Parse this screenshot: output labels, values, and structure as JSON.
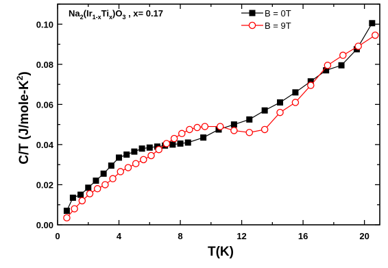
{
  "chart_data": {
    "type": "scatter",
    "title": "",
    "xlabel": "T(K)",
    "ylabel_parts": {
      "main": "C/T (J/mole-K",
      "sup": "2",
      "end": ")"
    },
    "xlim": [
      0,
      21
    ],
    "ylim": [
      0,
      0.11
    ],
    "xticks": [
      0,
      4,
      8,
      12,
      16,
      20
    ],
    "yticks": [
      0.0,
      0.02,
      0.04,
      0.06,
      0.08,
      0.1
    ],
    "ytick_labels": [
      "0.00",
      "0.02",
      "0.04",
      "0.06",
      "0.08",
      "0.10"
    ],
    "grid": false,
    "legend_position": "top-right",
    "annotation": {
      "parts": [
        {
          "text": "Na",
          "style": "normal"
        },
        {
          "text": "2",
          "style": "sub"
        },
        {
          "text": "(Ir",
          "style": "normal"
        },
        {
          "text": "1-x",
          "style": "sub"
        },
        {
          "text": "Ti",
          "style": "normal"
        },
        {
          "text": "x",
          "style": "sub"
        },
        {
          "text": ")O",
          "style": "normal"
        },
        {
          "text": "3",
          "style": "sub"
        },
        {
          "text": " , x= 0.17",
          "style": "normal"
        }
      ]
    },
    "series": [
      {
        "name": "B = 0T",
        "color": "#000000",
        "marker": "filled-square",
        "points": [
          [
            0.6,
            0.007
          ],
          [
            1.0,
            0.0135
          ],
          [
            1.5,
            0.015
          ],
          [
            2.0,
            0.0185
          ],
          [
            2.5,
            0.022
          ],
          [
            3.0,
            0.0255
          ],
          [
            3.5,
            0.0295
          ],
          [
            4.0,
            0.0335
          ],
          [
            4.5,
            0.035
          ],
          [
            5.0,
            0.0365
          ],
          [
            5.5,
            0.038
          ],
          [
            6.0,
            0.0385
          ],
          [
            6.5,
            0.039
          ],
          [
            7.0,
            0.0395
          ],
          [
            7.5,
            0.04
          ],
          [
            8.0,
            0.0405
          ],
          [
            8.5,
            0.041
          ],
          [
            9.5,
            0.0435
          ],
          [
            10.5,
            0.0475
          ],
          [
            11.5,
            0.05
          ],
          [
            12.5,
            0.0525
          ],
          [
            13.5,
            0.057
          ],
          [
            14.5,
            0.061
          ],
          [
            15.5,
            0.066
          ],
          [
            16.5,
            0.0715
          ],
          [
            17.5,
            0.077
          ],
          [
            18.5,
            0.0795
          ],
          [
            19.5,
            0.0875
          ],
          [
            20.5,
            0.1005
          ]
        ]
      },
      {
        "name": "B = 9T",
        "color": "#ff0000",
        "marker": "open-circle",
        "points": [
          [
            0.6,
            0.0035
          ],
          [
            1.1,
            0.008
          ],
          [
            1.6,
            0.012
          ],
          [
            2.1,
            0.0155
          ],
          [
            2.6,
            0.018
          ],
          [
            3.1,
            0.02
          ],
          [
            3.6,
            0.023
          ],
          [
            4.1,
            0.0265
          ],
          [
            4.6,
            0.0285
          ],
          [
            5.1,
            0.0305
          ],
          [
            5.6,
            0.0325
          ],
          [
            6.1,
            0.0345
          ],
          [
            6.6,
            0.0375
          ],
          [
            7.1,
            0.0405
          ],
          [
            7.6,
            0.043
          ],
          [
            8.1,
            0.0455
          ],
          [
            8.6,
            0.0475
          ],
          [
            9.1,
            0.0485
          ],
          [
            9.6,
            0.049
          ],
          [
            10.6,
            0.049
          ],
          [
            11.5,
            0.047
          ],
          [
            12.5,
            0.046
          ],
          [
            13.5,
            0.0475
          ],
          [
            14.5,
            0.056
          ],
          [
            15.5,
            0.061
          ],
          [
            16.5,
            0.0695
          ],
          [
            17.6,
            0.0795
          ],
          [
            18.6,
            0.0845
          ],
          [
            19.6,
            0.089
          ],
          [
            20.7,
            0.0945
          ]
        ]
      }
    ]
  }
}
